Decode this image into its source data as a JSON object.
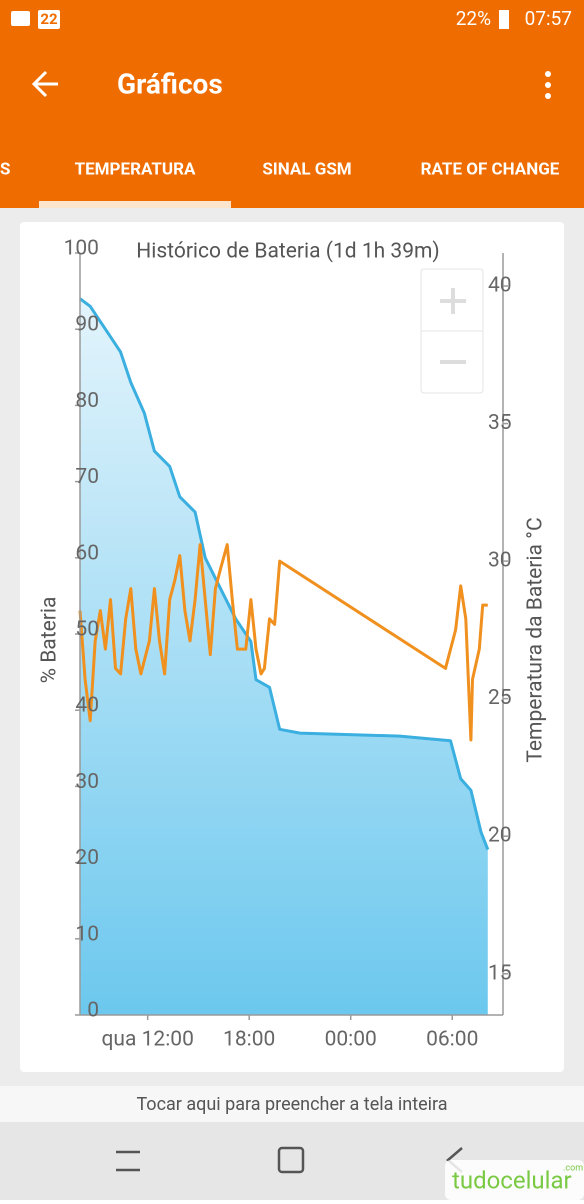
{
  "status_bar": {
    "notification_count": "22",
    "battery": "22%",
    "time": "07:57"
  },
  "app_bar": {
    "title": "Gráficos"
  },
  "tabs": [
    "S",
    "TEMPERATURA",
    "SINAL GSM",
    "RATE OF CHANGE"
  ],
  "chart_data": {
    "type": "line",
    "title": "Histórico de Bateria (1d 1h 39m)",
    "y_label": "% Bateria",
    "y2_label": "Temperatura da Bateria °C",
    "xlim": [
      8,
      33
    ],
    "xticks": [
      {
        "value": 12,
        "label": "qua 12:00"
      },
      {
        "value": 18,
        "label": "18:00"
      },
      {
        "value": 24,
        "label": "00:00"
      },
      {
        "value": 30,
        "label": "06:00"
      }
    ],
    "ylim": [
      0,
      100
    ],
    "yticks": [
      0,
      10,
      20,
      30,
      40,
      50,
      60,
      70,
      80,
      90,
      100
    ],
    "y2lim": [
      13.5,
      41.2
    ],
    "y2ticks": [
      15,
      20,
      25,
      30,
      35,
      40
    ],
    "series": [
      {
        "color": "#3aafe0",
        "axis": "y",
        "x": [
          8.0,
          8.6,
          9.2,
          9.8,
          10.4,
          11.0,
          11.8,
          12.4,
          13.3,
          13.9,
          14.8,
          15.4,
          16.3,
          17.2,
          18.1,
          18.4,
          19.2,
          19.8,
          21.0,
          26.9,
          29.9,
          30.5,
          31.1,
          31.7,
          32.1
        ],
        "values": [
          94,
          93,
          91,
          89,
          87,
          83,
          79,
          74,
          72,
          68,
          66,
          60,
          56,
          52,
          49,
          44,
          43,
          37.5,
          37,
          36.6,
          36,
          31,
          29.5,
          24,
          21.7
        ]
      },
      {
        "color": "#f0901e",
        "axis": "y2",
        "x": [
          8.0,
          8.3,
          8.6,
          8.9,
          9.2,
          9.5,
          9.8,
          10.1,
          10.4,
          10.7,
          11.0,
          11.3,
          11.6,
          12.1,
          12.4,
          12.7,
          13.0,
          13.3,
          13.6,
          13.9,
          14.2,
          14.5,
          14.8,
          15.1,
          15.4,
          15.7,
          16.0,
          16.3,
          16.7,
          17.0,
          17.3,
          17.8,
          18.1,
          18.4,
          18.7,
          18.9,
          19.2,
          19.5,
          19.8,
          29.6,
          30.2,
          30.5,
          30.8,
          31.1,
          31.2,
          31.6,
          31.8,
          32.1
        ],
        "values": [
          28.2,
          25.7,
          24.2,
          27.1,
          28.2,
          26.8,
          28.6,
          26.1,
          25.9,
          27.9,
          29.0,
          26.8,
          25.9,
          27.1,
          29.0,
          27.1,
          25.9,
          28.6,
          29.3,
          30.2,
          28.2,
          27.1,
          28.6,
          30.6,
          28.6,
          26.6,
          29.0,
          29.7,
          30.6,
          28.6,
          26.8,
          26.8,
          28.6,
          26.8,
          25.9,
          26.1,
          27.9,
          27.7,
          30.0,
          26.1,
          27.5,
          29.1,
          27.9,
          23.5,
          25.7,
          26.8,
          28.4,
          28.4
        ]
      }
    ]
  },
  "footer": {
    "hint": "Tocar aqui para preencher a tela inteira"
  },
  "watermark": {
    "name": "tudocelular",
    "suffix": ".com"
  }
}
